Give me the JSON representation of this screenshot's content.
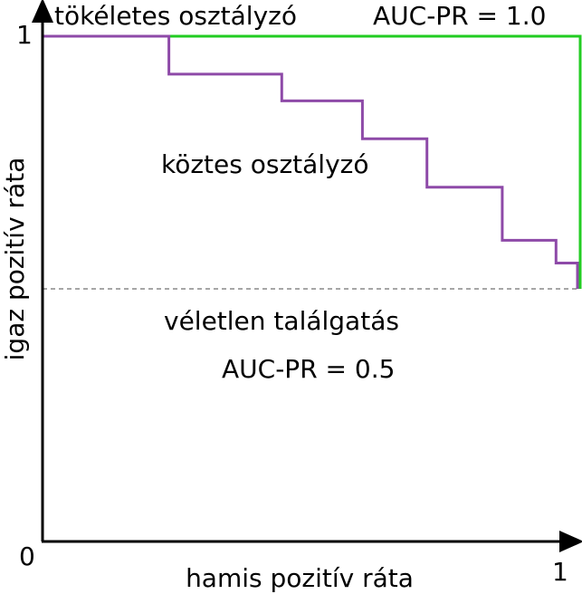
{
  "colors": {
    "axis": "#000000",
    "perfect": "#22cc22",
    "intermediate": "#8e4aa8",
    "random": "#a6a6a6"
  },
  "axes": {
    "y_label": "igaz pozitív ráta",
    "x_label": "hamis pozitív ráta",
    "origin_label": "0",
    "y_max_label": "1",
    "x_max_label": "1"
  },
  "labels": {
    "perfect": "tökéletes osztályzó",
    "perfect_auc": "AUC-PR = 1.0",
    "intermediate": "köztes osztályzó",
    "random": "véletlen találgatás",
    "random_auc": "AUC-PR = 0.5"
  },
  "curves": {
    "perfect": [
      [
        0,
        1
      ],
      [
        1,
        1
      ],
      [
        1,
        0.5
      ]
    ],
    "random": [
      [
        0,
        0.5
      ],
      [
        1,
        0.5
      ]
    ],
    "intermediate": [
      [
        0,
        1
      ],
      [
        0.235,
        1
      ],
      [
        0.235,
        0.925
      ],
      [
        0.445,
        0.925
      ],
      [
        0.445,
        0.872
      ],
      [
        0.595,
        0.872
      ],
      [
        0.595,
        0.797
      ],
      [
        0.715,
        0.797
      ],
      [
        0.715,
        0.701
      ],
      [
        0.855,
        0.701
      ],
      [
        0.855,
        0.596
      ],
      [
        0.955,
        0.596
      ],
      [
        0.955,
        0.551
      ],
      [
        0.995,
        0.551
      ],
      [
        0.995,
        0.5
      ]
    ]
  }
}
